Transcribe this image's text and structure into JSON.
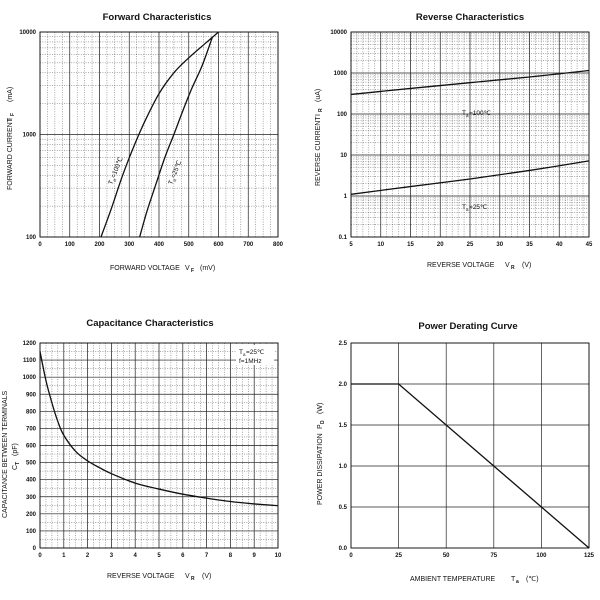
{
  "chart_data": [
    {
      "id": "forward",
      "type": "line",
      "scale": "log-y",
      "title": "Forward   Characteristics",
      "xlabel": "FORWARD VOLTAGE",
      "xlabel_symbol": "V",
      "xlabel_sub": "F",
      "xlabel_unit": "(mV)",
      "ylabel": "FORWARD CURRENT",
      "ylabel_symbol": "I",
      "ylabel_sub": "F",
      "ylabel_unit": "(mA)",
      "xlim": [
        0,
        800
      ],
      "ylim": [
        100,
        10000
      ],
      "xticks": [
        0,
        100,
        200,
        300,
        400,
        500,
        600,
        700,
        800
      ],
      "yticks": [
        100,
        1000,
        10000
      ],
      "series": [
        {
          "name": "Ta=100℃",
          "label_main": "T",
          "label_sub": "a",
          "label_rest": "=100℃",
          "x": [
            205,
            240,
            275,
            310,
            350,
            400,
            450,
            500,
            550,
            600
          ],
          "y": [
            100,
            190,
            380,
            700,
            1300,
            2500,
            4000,
            5600,
            7500,
            10000
          ]
        },
        {
          "name": "Ta=25℃",
          "label_main": "T",
          "label_sub": "a",
          "label_rest": "=25℃",
          "x": [
            335,
            360,
            390,
            420,
            450,
            480,
            510,
            545,
            580
          ],
          "y": [
            100,
            180,
            330,
            600,
            1000,
            1700,
            2800,
            4700,
            9000
          ]
        }
      ]
    },
    {
      "id": "reverse",
      "type": "line",
      "scale": "log-y",
      "title": "Reverse    Characteristics",
      "xlabel": "REVERSE VOLTAGE",
      "xlabel_symbol": "V",
      "xlabel_sub": "R",
      "xlabel_unit": "(V)",
      "ylabel": "REVERSE CURRENT",
      "ylabel_symbol": "I",
      "ylabel_sub": "R",
      "ylabel_unit": "(uA)",
      "xlim": [
        5,
        45
      ],
      "ylim": [
        0.1,
        10000
      ],
      "xticks": [
        5,
        10,
        15,
        20,
        25,
        30,
        35,
        40,
        45
      ],
      "yticks": [
        0.1,
        1,
        10,
        100,
        1000,
        10000
      ],
      "ytick_labels": [
        "0.1",
        "1",
        "10",
        "100",
        "1000",
        "10000"
      ],
      "series": [
        {
          "name": "Ta=100℃",
          "label_main": "T",
          "label_sub": "a",
          "label_rest": "=100℃",
          "x": [
            5,
            15,
            25,
            35,
            45
          ],
          "y": [
            300,
            420,
            580,
            800,
            1150
          ]
        },
        {
          "name": "Ta=25℃",
          "label_main": "T",
          "label_sub": "a",
          "label_rest": "=25℃",
          "x": [
            5,
            15,
            25,
            35,
            45
          ],
          "y": [
            1.1,
            1.7,
            2.6,
            4.2,
            7.2
          ]
        }
      ]
    },
    {
      "id": "capacitance",
      "type": "line",
      "scale": "linear",
      "title": "Capacitance Characteristics",
      "xlabel": "REVERSE VOLTAGE",
      "xlabel_symbol": "V",
      "xlabel_sub": "R",
      "xlabel_unit": "(V)",
      "ylabel": "CAPACITANCE BETWEEN TERMINALS",
      "ylabel2_symbol": "C",
      "ylabel2_sub": "T",
      "ylabel_unit": "(pF)",
      "annotation_line1_main": "T",
      "annotation_line1_sub": "a",
      "annotation_line1_rest": "=25℃",
      "annotation_line2": "f=1MHz",
      "xlim": [
        0,
        10
      ],
      "ylim": [
        0,
        1200
      ],
      "xticks": [
        0,
        1,
        2,
        3,
        4,
        5,
        6,
        7,
        8,
        9,
        10
      ],
      "yticks": [
        0,
        100,
        200,
        300,
        400,
        500,
        600,
        700,
        800,
        900,
        1000,
        1100,
        1200
      ],
      "series": [
        {
          "name": "C",
          "x": [
            0,
            0.25,
            0.5,
            0.75,
            1,
            1.5,
            2,
            2.5,
            3,
            4,
            5,
            6,
            7,
            8,
            9,
            10
          ],
          "y": [
            1150,
            980,
            850,
            740,
            660,
            565,
            510,
            470,
            435,
            380,
            345,
            315,
            292,
            272,
            258,
            248
          ]
        }
      ]
    },
    {
      "id": "derating",
      "type": "line",
      "scale": "linear",
      "title": "Power Derating Curve",
      "xlabel": "AMBIENT TEMPERATURE",
      "xlabel_symbol": "T",
      "xlabel_sub": "a",
      "xlabel_unit": "(℃)",
      "ylabel": "POWER DISSIPATION",
      "ylabel_symbol": "P",
      "ylabel_sub": "D",
      "ylabel_unit": "(W)",
      "xlim": [
        0,
        125
      ],
      "ylim": [
        0,
        2.5
      ],
      "xticks": [
        0,
        25,
        50,
        75,
        100,
        125
      ],
      "yticks": [
        0,
        0.5,
        1.0,
        1.5,
        2.0,
        2.5
      ],
      "ytick_labels": [
        "0.0",
        "0.5",
        "1.0",
        "1.5",
        "2.0",
        "2.5"
      ],
      "series": [
        {
          "name": "PD",
          "x": [
            0,
            25,
            125
          ],
          "y": [
            2.0,
            2.0,
            0
          ]
        }
      ]
    }
  ]
}
